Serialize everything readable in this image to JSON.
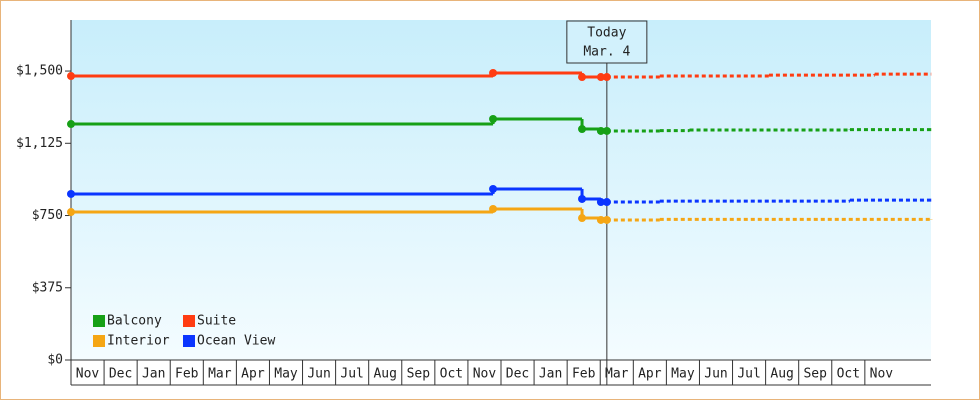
{
  "chart_data": {
    "type": "step-line",
    "xlim": [
      0,
      26
    ],
    "xticks": [
      {
        "value": 0.5,
        "label": "Nov"
      },
      {
        "value": 1.5,
        "label": "Dec"
      },
      {
        "value": 2.5,
        "label": "Jan"
      },
      {
        "value": 3.5,
        "label": "Feb"
      },
      {
        "value": 4.5,
        "label": "Mar"
      },
      {
        "value": 5.5,
        "label": "Apr"
      },
      {
        "value": 6.5,
        "label": "May"
      },
      {
        "value": 7.5,
        "label": "Jun"
      },
      {
        "value": 8.5,
        "label": "Jul"
      },
      {
        "value": 9.5,
        "label": "Aug"
      },
      {
        "value": 10.5,
        "label": "Sep"
      },
      {
        "value": 11.5,
        "label": "Oct"
      },
      {
        "value": 12.5,
        "label": "Nov"
      },
      {
        "value": 13.5,
        "label": "Dec"
      },
      {
        "value": 14.5,
        "label": "Jan"
      },
      {
        "value": 15.5,
        "label": "Feb"
      },
      {
        "value": 16.5,
        "label": "Mar"
      },
      {
        "value": 17.5,
        "label": "Apr"
      },
      {
        "value": 18.5,
        "label": "May"
      },
      {
        "value": 19.5,
        "label": "Jun"
      },
      {
        "value": 20.5,
        "label": "Jul"
      },
      {
        "value": 21.5,
        "label": "Aug"
      },
      {
        "value": 22.5,
        "label": "Sep"
      },
      {
        "value": 23.5,
        "label": "Oct"
      },
      {
        "value": 24.5,
        "label": "Nov"
      }
    ],
    "ylim": [
      0,
      1765
    ],
    "yticks": [
      {
        "value": 0,
        "label": "$0"
      },
      {
        "value": 375,
        "label": "$375"
      },
      {
        "value": 750,
        "label": "$750"
      },
      {
        "value": 1125,
        "label": "$1,125"
      },
      {
        "value": 1500,
        "label": "$1,500"
      }
    ],
    "today": {
      "x": 16.2,
      "label": "Today",
      "date": "Mar. 4"
    },
    "legend": "lower left",
    "series": [
      {
        "name": "Balcony",
        "color": "#16a016",
        "x": [
          0,
          12.76,
          15.45,
          16.02,
          16.2,
          17.8,
          18.7,
          23.55,
          26
        ],
        "values": [
          1225,
          1251,
          1199,
          1189,
          1189,
          1191,
          1194,
          1196,
          1196
        ]
      },
      {
        "name": "Suite",
        "color": "#ff3c12",
        "x": [
          0,
          12.76,
          15.45,
          16.02,
          16.2,
          17.8,
          21.1,
          24.3,
          26
        ],
        "values": [
          1474,
          1490,
          1469,
          1469,
          1469,
          1474,
          1479,
          1484,
          1484
        ]
      },
      {
        "name": "Interior",
        "color": "#f5a614",
        "x": [
          0,
          12.76,
          15.45,
          16.02,
          16.2,
          17.8,
          26
        ],
        "values": [
          768,
          784,
          737,
          727,
          727,
          730,
          732
        ]
      },
      {
        "name": "Ocean View",
        "color": "#0a35ff",
        "x": [
          0,
          12.76,
          15.45,
          16.02,
          16.2,
          17.8,
          23.55,
          26
        ],
        "values": [
          862,
          888,
          836,
          820,
          820,
          825,
          830,
          830
        ]
      }
    ]
  }
}
